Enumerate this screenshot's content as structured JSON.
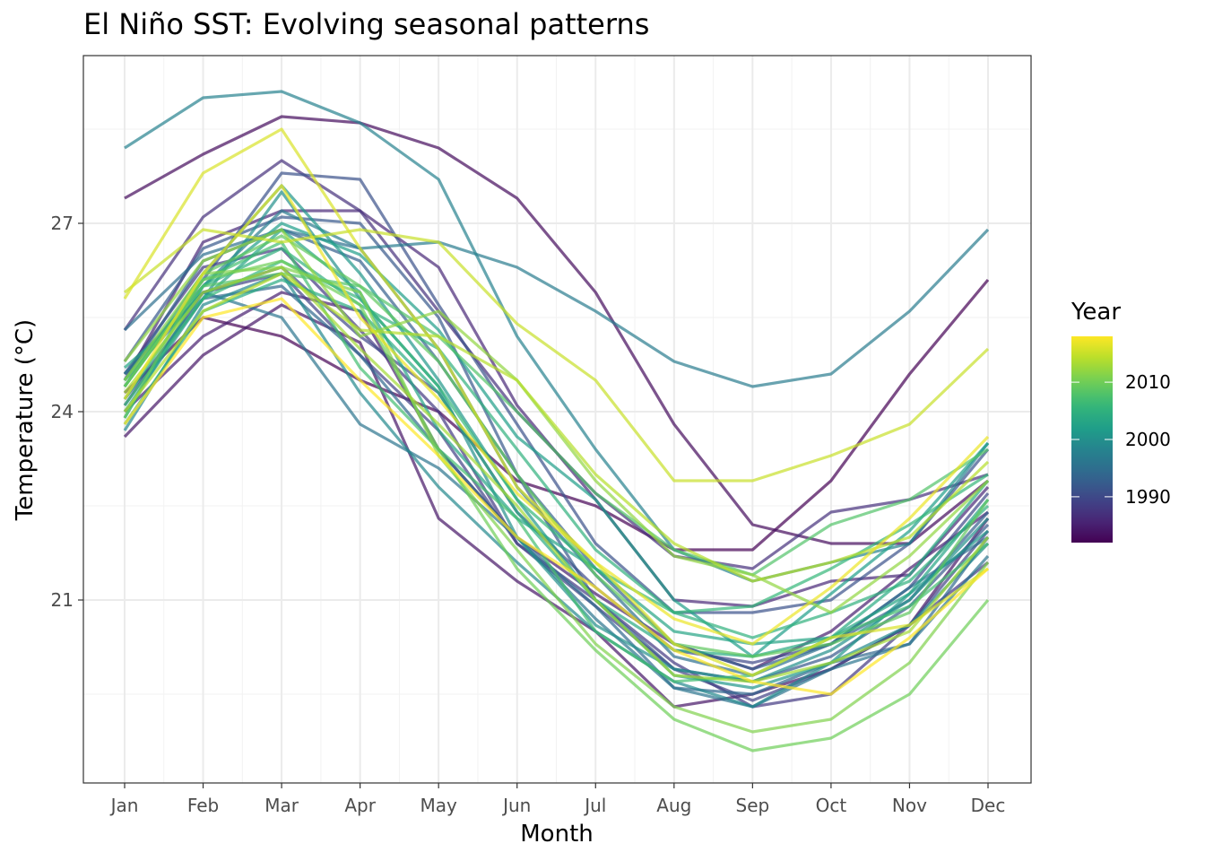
{
  "chart_data": {
    "type": "line",
    "title": "El Niño SST: Evolving seasonal patterns",
    "xlabel": "Month",
    "ylabel": "Temperature (°C)",
    "categories": [
      "Jan",
      "Feb",
      "Mar",
      "Apr",
      "May",
      "Jun",
      "Jul",
      "Aug",
      "Sep",
      "Oct",
      "Nov",
      "Dec"
    ],
    "yticks": [
      21,
      24,
      27
    ],
    "ylim": [
      17.85,
      29.45
    ],
    "grid": true,
    "legend": {
      "title": "Year",
      "position": "right",
      "ticks": [
        1990,
        2000,
        2010
      ],
      "range": [
        1982,
        2018
      ],
      "palette": "viridis"
    },
    "series": [
      {
        "year": 1982,
        "values": [
          24.3,
          25.5,
          25.2,
          24.5,
          24.0,
          22.9,
          22.5,
          21.8,
          21.8,
          22.9,
          24.6,
          26.1
        ]
      },
      {
        "year": 1983,
        "values": [
          27.4,
          28.1,
          28.7,
          28.6,
          28.2,
          27.4,
          25.9,
          23.8,
          22.2,
          21.9,
          21.9,
          22.9
        ]
      },
      {
        "year": 1984,
        "values": [
          23.6,
          24.9,
          25.7,
          25.1,
          22.3,
          21.3,
          20.5,
          19.3,
          19.5,
          19.9,
          20.6,
          22.3
        ]
      },
      {
        "year": 1985,
        "values": [
          24.0,
          25.2,
          25.9,
          25.6,
          23.4,
          22.0,
          21.1,
          20.3,
          19.9,
          20.5,
          21.5,
          22.4
        ]
      },
      {
        "year": 1986,
        "values": [
          24.5,
          26.7,
          27.2,
          27.2,
          26.3,
          24.1,
          22.6,
          21.0,
          20.9,
          21.3,
          21.4,
          22.8
        ]
      },
      {
        "year": 1987,
        "values": [
          25.3,
          27.1,
          28.0,
          27.2,
          25.6,
          24.0,
          22.7,
          21.7,
          21.5,
          22.4,
          22.6,
          23.0
        ]
      },
      {
        "year": 1988,
        "values": [
          24.6,
          26.3,
          26.6,
          25.3,
          24.0,
          21.9,
          21.0,
          20.0,
          19.3,
          19.5,
          20.6,
          21.6
        ]
      },
      {
        "year": 1989,
        "values": [
          24.1,
          25.9,
          26.2,
          24.9,
          23.7,
          21.9,
          20.9,
          19.9,
          19.4,
          19.9,
          20.6,
          22.1
        ]
      },
      {
        "year": 1990,
        "values": [
          24.6,
          25.9,
          26.3,
          25.2,
          24.3,
          22.4,
          21.2,
          20.2,
          20.0,
          20.3,
          21.2,
          22.7
        ]
      },
      {
        "year": 1991,
        "values": [
          24.4,
          26.1,
          27.8,
          27.7,
          25.7,
          23.8,
          21.9,
          20.8,
          20.8,
          21.0,
          21.9,
          23.4
        ]
      },
      {
        "year": 1992,
        "values": [
          24.8,
          26.6,
          27.1,
          27.0,
          25.5,
          23.0,
          21.0,
          19.9,
          19.7,
          20.1,
          20.9,
          22.2
        ]
      },
      {
        "year": 1993,
        "values": [
          24.5,
          26.4,
          26.9,
          26.4,
          24.8,
          23.0,
          21.5,
          20.3,
          19.9,
          20.3,
          21.0,
          22.4
        ]
      },
      {
        "year": 1994,
        "values": [
          24.2,
          25.8,
          26.0,
          24.9,
          23.4,
          22.0,
          20.9,
          19.6,
          19.5,
          20.0,
          20.3,
          22.0
        ]
      },
      {
        "year": 1995,
        "values": [
          25.3,
          26.5,
          26.9,
          26.6,
          25.0,
          22.8,
          21.4,
          20.1,
          19.8,
          20.3,
          21.2,
          22.0
        ]
      },
      {
        "year": 1996,
        "values": [
          24.5,
          25.9,
          25.5,
          23.8,
          23.1,
          22.0,
          20.7,
          19.6,
          19.3,
          19.9,
          20.3,
          21.7
        ]
      },
      {
        "year": 1997,
        "values": [
          24.6,
          26.0,
          27.2,
          26.6,
          26.7,
          26.3,
          25.6,
          24.8,
          24.4,
          24.6,
          25.6,
          26.9
        ]
      },
      {
        "year": 1998,
        "values": [
          28.2,
          29.0,
          29.1,
          28.6,
          27.7,
          25.2,
          23.4,
          21.8,
          21.3,
          21.6,
          21.9,
          23.5
        ]
      },
      {
        "year": 1999,
        "values": [
          23.7,
          25.7,
          26.2,
          24.3,
          22.8,
          21.6,
          20.5,
          19.7,
          19.3,
          20.0,
          20.6,
          21.9
        ]
      },
      {
        "year": 2000,
        "values": [
          24.0,
          25.8,
          27.5,
          25.8,
          24.4,
          22.0,
          20.6,
          19.9,
          19.7,
          20.2,
          21.0,
          22.3
        ]
      },
      {
        "year": 2001,
        "values": [
          24.4,
          26.2,
          27.6,
          26.2,
          24.5,
          22.6,
          21.0,
          19.8,
          19.6,
          20.0,
          21.1,
          22.1
        ]
      },
      {
        "year": 2002,
        "values": [
          23.9,
          26.0,
          27.0,
          26.5,
          25.3,
          23.6,
          22.6,
          21.0,
          20.1,
          21.1,
          22.1,
          23.5
        ]
      },
      {
        "year": 2003,
        "values": [
          24.7,
          25.8,
          26.9,
          25.9,
          23.7,
          22.3,
          21.5,
          20.5,
          20.3,
          20.4,
          21.1,
          22.6
        ]
      },
      {
        "year": 2004,
        "values": [
          23.8,
          25.6,
          26.1,
          25.6,
          24.3,
          22.4,
          21.0,
          20.2,
          20.1,
          20.4,
          21.4,
          22.9
        ]
      },
      {
        "year": 2005,
        "values": [
          24.2,
          26.0,
          26.6,
          25.7,
          25.0,
          23.4,
          21.8,
          20.8,
          20.4,
          20.8,
          21.3,
          22.5
        ]
      },
      {
        "year": 2006,
        "values": [
          24.1,
          25.8,
          26.4,
          25.8,
          24.4,
          22.6,
          21.5,
          20.8,
          20.9,
          21.5,
          22.2,
          23.0
        ]
      },
      {
        "year": 2007,
        "values": [
          24.4,
          26.1,
          26.7,
          24.7,
          23.4,
          22.3,
          20.5,
          19.7,
          19.8,
          20.4,
          20.9,
          21.9
        ]
      },
      {
        "year": 2008,
        "values": [
          24.5,
          26.0,
          26.2,
          26.0,
          25.2,
          24.0,
          22.7,
          21.8,
          21.4,
          22.2,
          22.6,
          23.4
        ]
      },
      {
        "year": 2009,
        "values": [
          23.9,
          26.2,
          26.8,
          26.0,
          24.8,
          23.0,
          21.4,
          20.3,
          20.1,
          20.3,
          20.8,
          22.6
        ]
      },
      {
        "year": 2010,
        "values": [
          24.4,
          26.1,
          26.4,
          25.7,
          23.4,
          21.5,
          20.2,
          19.1,
          18.6,
          18.8,
          19.5,
          21.0
        ]
      },
      {
        "year": 2011,
        "values": [
          24.5,
          26.2,
          26.3,
          25.9,
          23.3,
          21.8,
          20.3,
          19.3,
          18.9,
          19.1,
          20.0,
          21.6
        ]
      },
      {
        "year": 2012,
        "values": [
          24.8,
          26.4,
          26.9,
          25.2,
          25.6,
          24.5,
          22.9,
          21.7,
          21.4,
          20.8,
          21.7,
          22.9
        ]
      },
      {
        "year": 2013,
        "values": [
          24.3,
          25.9,
          26.3,
          25.0,
          23.8,
          22.5,
          21.0,
          19.8,
          19.7,
          20.0,
          20.5,
          22.0
        ]
      },
      {
        "year": 2014,
        "values": [
          24.0,
          25.6,
          26.2,
          25.3,
          25.2,
          24.5,
          23.0,
          21.9,
          21.3,
          21.6,
          22.0,
          23.2
        ]
      },
      {
        "year": 2015,
        "values": [
          25.9,
          26.9,
          26.7,
          26.9,
          26.7,
          25.4,
          24.5,
          22.9,
          22.9,
          23.3,
          23.8,
          25.0
        ]
      },
      {
        "year": 2016,
        "values": [
          25.8,
          27.8,
          28.5,
          26.6,
          25.0,
          22.8,
          21.6,
          20.3,
          19.8,
          20.4,
          20.6,
          21.5
        ]
      },
      {
        "year": 2017,
        "values": [
          24.2,
          26.2,
          27.6,
          25.5,
          24.2,
          22.7,
          21.6,
          20.7,
          20.3,
          21.2,
          22.3,
          23.6
        ]
      },
      {
        "year": 2018,
        "values": [
          23.8,
          25.5,
          25.8,
          24.5,
          23.3,
          22.0,
          21.2,
          20.2,
          19.7,
          19.5,
          20.4,
          21.5
        ]
      }
    ]
  }
}
